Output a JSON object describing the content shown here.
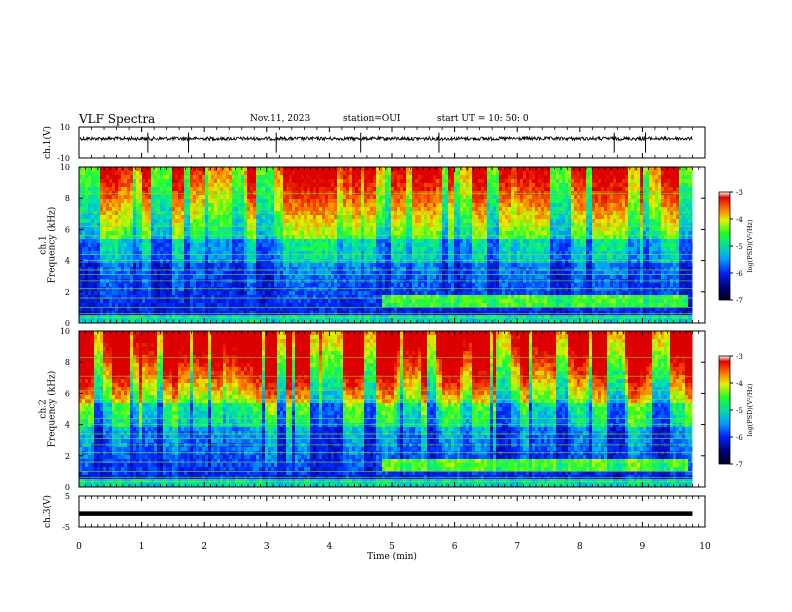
{
  "header": {
    "title": "VLF Spectra",
    "date": "Nov.11, 2023",
    "station": "station=OUI",
    "start": "start  UT  =   10: 50: 0"
  },
  "chart_data": [
    {
      "type": "line",
      "name": "ch.1 waveform",
      "ylabel": "ch.1(V)",
      "ylim": [
        -10,
        10
      ],
      "yticks": [
        "10",
        "-10"
      ],
      "xlim": [
        0,
        10
      ],
      "x": [
        0,
        9.8
      ],
      "y": [
        2.5,
        2.5
      ],
      "spikes_x": [
        1.1,
        1.75,
        3.15,
        4.5,
        5.75,
        8.55,
        9.05
      ]
    },
    {
      "type": "heatmap",
      "name": "ch.1 spectrogram",
      "ylabel": "ch.1\nFrequency (kHz)",
      "ylim": [
        0,
        10
      ],
      "yticks": [
        "0",
        "2",
        "4",
        "6",
        "8",
        "10"
      ],
      "xlim": [
        0,
        10
      ],
      "data_end_x": 9.8,
      "colorbar": {
        "label": "log(PSD)(V²/Hz)",
        "ticks": [
          "-3",
          "-4",
          "-5",
          "-6",
          "-7"
        ],
        "range": [
          -7,
          -3
        ]
      }
    },
    {
      "type": "heatmap",
      "name": "ch.2 spectrogram",
      "ylabel": "ch.2\nFrequency (kHz)",
      "ylim": [
        0,
        10
      ],
      "yticks": [
        "0",
        "2",
        "4",
        "6",
        "8",
        "10"
      ],
      "xlim": [
        0,
        10
      ],
      "data_end_x": 9.8,
      "colorbar": {
        "label": "log(PSD)(V²/Hz)",
        "ticks": [
          "-3",
          "-4",
          "-5",
          "-6",
          "-7"
        ],
        "range": [
          -7,
          -3
        ]
      }
    },
    {
      "type": "line",
      "name": "ch.3 waveform",
      "ylabel": "ch.3(V)",
      "ylim": [
        -5,
        5
      ],
      "yticks": [
        "5",
        "-5"
      ],
      "xlim": [
        0,
        10
      ],
      "x": [
        0,
        9.8
      ],
      "y": [
        -0.7,
        -0.7
      ],
      "xlabel": "Time  (min)",
      "xticks": [
        "0",
        "1",
        "2",
        "3",
        "4",
        "5",
        "6",
        "7",
        "8",
        "9",
        "10"
      ]
    }
  ]
}
